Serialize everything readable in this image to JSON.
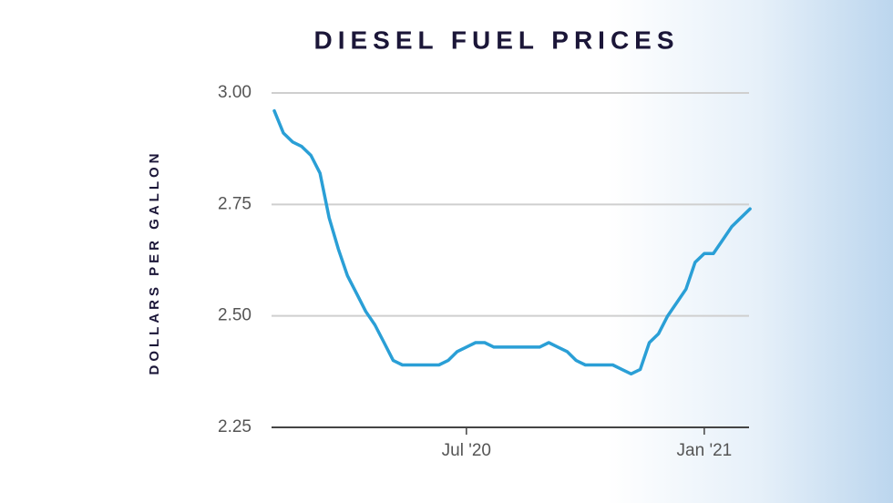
{
  "chart_data": {
    "type": "line",
    "title": "DIESEL FUEL PRICES",
    "y_label": "DOLLARS PER GALLON",
    "categories": [
      null,
      null,
      null,
      null,
      null,
      null,
      null,
      null,
      null,
      null,
      null,
      null,
      null,
      null,
      null,
      null,
      null,
      null,
      null,
      null,
      null,
      "Jul '20",
      null,
      null,
      null,
      null,
      null,
      null,
      null,
      null,
      null,
      null,
      null,
      null,
      null,
      null,
      null,
      null,
      null,
      null,
      null,
      null,
      null,
      null,
      null,
      null,
      null,
      "Jan '21",
      null,
      null,
      null,
      null,
      null
    ],
    "series": [
      {
        "color": "#2a9fd6",
        "values": [
          2.96,
          2.91,
          2.89,
          2.88,
          2.86,
          2.82,
          2.72,
          2.65,
          2.59,
          2.55,
          2.51,
          2.48,
          2.44,
          2.4,
          2.39,
          2.39,
          2.39,
          2.39,
          2.39,
          2.4,
          2.42,
          2.43,
          2.44,
          2.44,
          2.43,
          2.43,
          2.43,
          2.43,
          2.43,
          2.43,
          2.44,
          2.43,
          2.42,
          2.4,
          2.39,
          2.39,
          2.39,
          2.39,
          2.38,
          2.37,
          2.38,
          2.44,
          2.46,
          2.5,
          2.53,
          2.56,
          2.62,
          2.64,
          2.64,
          2.67,
          2.7,
          2.72,
          2.74
        ]
      }
    ],
    "ylim": [
      2.25,
      3
    ],
    "yticks": [
      2.25,
      {
        "value": 2.5,
        "label": "2.50"
      },
      2.75,
      {
        "value": 3,
        "label": "3.00"
      }
    ],
    "grid": true
  }
}
